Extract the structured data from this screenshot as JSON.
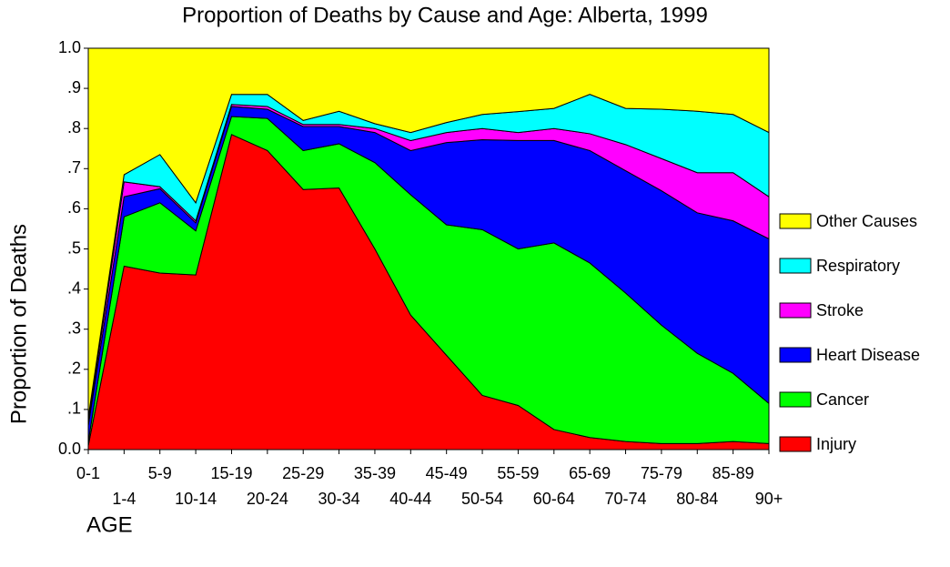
{
  "chart_data": {
    "type": "stacked_area",
    "title": "Proportion of Deaths by Cause and Age: Alberta, 1999",
    "x_label": "AGE",
    "y_label": "Proportion of Deaths",
    "categories": [
      "0-1",
      "1-4",
      "5-9",
      "10-14",
      "15-19",
      "20-24",
      "25-29",
      "30-34",
      "35-39",
      "40-44",
      "45-49",
      "50-54",
      "55-59",
      "60-64",
      "65-69",
      "70-74",
      "75-79",
      "80-84",
      "85-89",
      "90+"
    ],
    "series": [
      {
        "name": "Injury",
        "color": "#ff0000",
        "values": [
          0.01,
          0.457,
          0.44,
          0.435,
          0.785,
          0.745,
          0.648,
          0.652,
          0.5,
          0.335,
          0.235,
          0.135,
          0.11,
          0.05,
          0.03,
          0.02,
          0.015,
          0.015,
          0.02,
          0.015
        ]
      },
      {
        "name": "Cancer",
        "color": "#00ff00",
        "values": [
          0.01,
          0.123,
          0.175,
          0.11,
          0.045,
          0.08,
          0.097,
          0.11,
          0.215,
          0.3,
          0.325,
          0.413,
          0.39,
          0.465,
          0.435,
          0.37,
          0.295,
          0.225,
          0.17,
          0.1
        ]
      },
      {
        "name": "Heart Disease",
        "color": "#0000ff",
        "values": [
          0.04,
          0.05,
          0.035,
          0.02,
          0.025,
          0.023,
          0.06,
          0.043,
          0.075,
          0.11,
          0.205,
          0.224,
          0.27,
          0.255,
          0.28,
          0.305,
          0.335,
          0.35,
          0.38,
          0.41
        ]
      },
      {
        "name": "Stroke",
        "color": "#ff00ff",
        "values": [
          0.01,
          0.037,
          0.005,
          0.005,
          0.005,
          0.007,
          0.005,
          0.005,
          0.01,
          0.025,
          0.025,
          0.028,
          0.02,
          0.03,
          0.042,
          0.065,
          0.08,
          0.1,
          0.12,
          0.105
        ]
      },
      {
        "name": "Respiratory",
        "color": "#00ffff",
        "values": [
          0.01,
          0.018,
          0.08,
          0.045,
          0.025,
          0.03,
          0.01,
          0.033,
          0.012,
          0.02,
          0.025,
          0.035,
          0.052,
          0.05,
          0.098,
          0.09,
          0.123,
          0.153,
          0.145,
          0.16
        ]
      },
      {
        "name": "Other Causes",
        "color": "#ffff00",
        "values": [
          0.92,
          0.315,
          0.265,
          0.385,
          0.115,
          0.115,
          0.18,
          0.157,
          0.188,
          0.21,
          0.185,
          0.165,
          0.158,
          0.15,
          0.115,
          0.15,
          0.152,
          0.157,
          0.165,
          0.21
        ]
      }
    ],
    "ylim": [
      0,
      1
    ],
    "yticks": [
      {
        "value": 0,
        "label": "0.0"
      },
      {
        "value": 0.1,
        "label": ".1"
      },
      {
        "value": 0.2,
        "label": ".2"
      },
      {
        "value": 0.3,
        "label": ".3"
      },
      {
        "value": 0.4,
        "label": ".4"
      },
      {
        "value": 0.5,
        "label": ".5"
      },
      {
        "value": 0.6,
        "label": ".6"
      },
      {
        "value": 0.7,
        "label": ".7"
      },
      {
        "value": 0.8,
        "label": ".8"
      },
      {
        "value": 0.9,
        "label": ".9"
      },
      {
        "value": 1,
        "label": "1.0"
      }
    ],
    "legend": "right"
  }
}
